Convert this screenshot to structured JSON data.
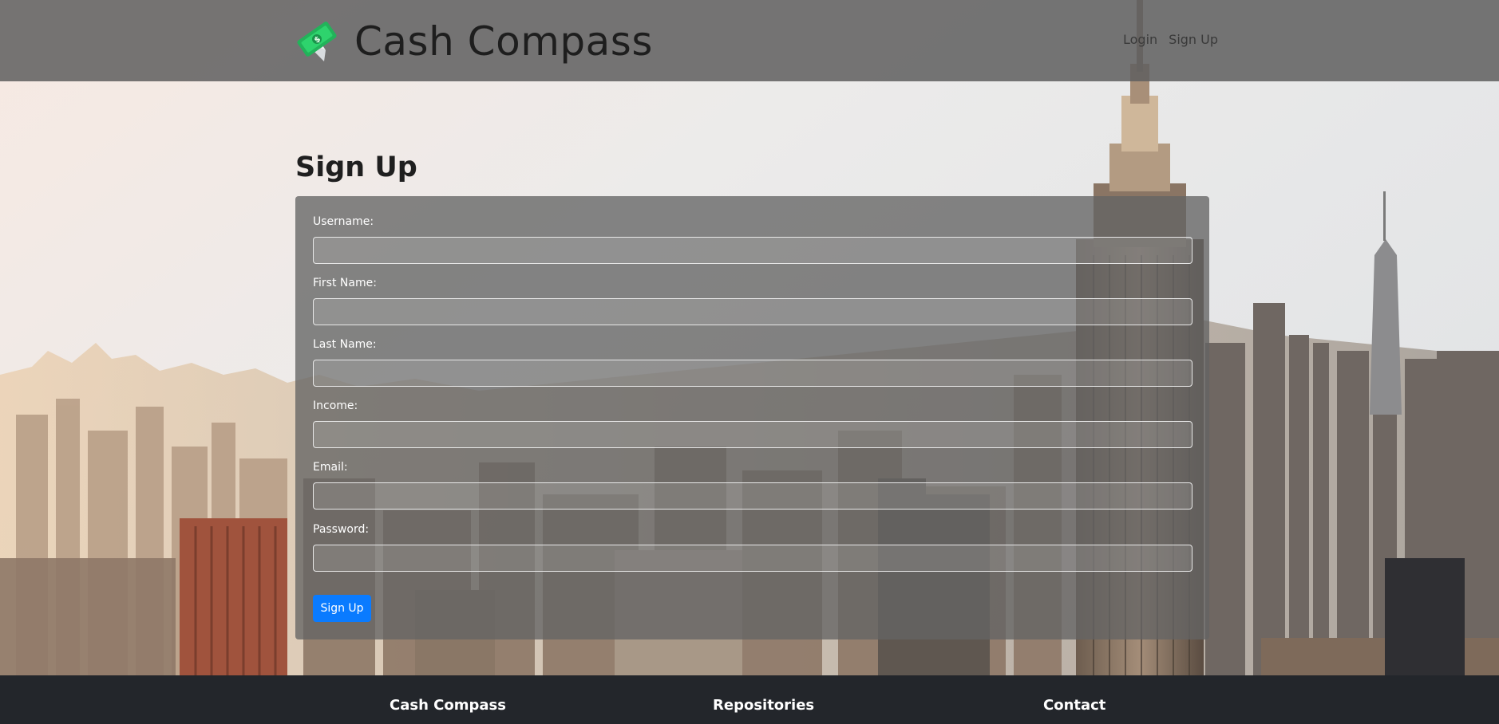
{
  "header": {
    "brand_name": "Cash Compass",
    "nav": [
      {
        "label": "Login"
      },
      {
        "label": "Sign Up"
      }
    ]
  },
  "main": {
    "title": "Sign Up",
    "fields": [
      {
        "label": "Username:",
        "value": ""
      },
      {
        "label": "First Name:",
        "value": ""
      },
      {
        "label": "Last Name:",
        "value": ""
      },
      {
        "label": "Income:",
        "value": ""
      },
      {
        "label": "Email:",
        "value": ""
      },
      {
        "label": "Password:",
        "value": ""
      }
    ],
    "submit_label": "Sign Up"
  },
  "footer": {
    "columns": [
      {
        "heading": "Cash Compass"
      },
      {
        "heading": "Repositories"
      },
      {
        "heading": "Contact"
      }
    ]
  },
  "colors": {
    "accent": "#0a7bff",
    "footer_bg": "#23262b"
  },
  "icons": {
    "brand_logo": "money-bill-compass-icon"
  }
}
